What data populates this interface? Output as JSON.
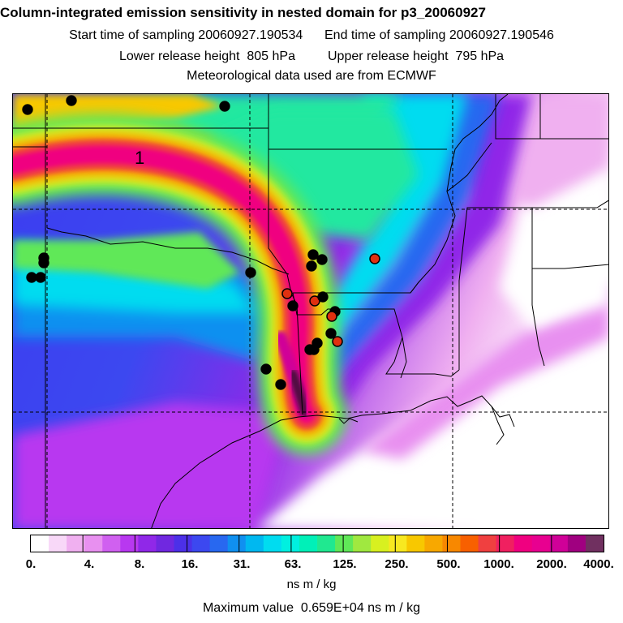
{
  "header": {
    "title": "Column-integrated emission sensitivity in nested domain for p3_20060927",
    "start_label": "Start time of sampling",
    "start_value": "20060927.190534",
    "end_label": "End time of sampling",
    "end_value": "20060927.190546",
    "lower_label": "Lower release height",
    "lower_value": "805 hPa",
    "upper_label": "Upper release height",
    "upper_value": "795 hPa",
    "met_note": "Meteorological data used are from ECMWF"
  },
  "map": {
    "contour_label": "1",
    "colors": {
      "background_low": "#ffffff",
      "violet": "#c040f0",
      "blue": "#3c3cf0",
      "cyan": "#00f0f0",
      "green": "#20e8a0",
      "yellow": "#f8d020",
      "orange": "#f8a000",
      "red": "#f02050",
      "magenta": "#f00090",
      "max": "#501040",
      "marker_black": "#000000",
      "marker_red": "#e03010"
    }
  },
  "colorbar": {
    "tick_labels": [
      "0.",
      "4.",
      "8.",
      "16.",
      "31.",
      "63.",
      "125.",
      "250.",
      "500.",
      "1000.",
      "2000.",
      "4000."
    ],
    "swatches": [
      "#ffffff",
      "#f8d8f8",
      "#f0b0f0",
      "#e890f0",
      "#d060f0",
      "#b838f0",
      "#9028e8",
      "#7028e0",
      "#4c30e8",
      "#3c48f0",
      "#2868f0",
      "#1090f0",
      "#00b8f0",
      "#00dcf0",
      "#00f0e0",
      "#00f0b8",
      "#20e890",
      "#60e858",
      "#a0e840",
      "#d8f020",
      "#f8e820",
      "#f8c800",
      "#f8a800",
      "#f88800",
      "#f86000",
      "#f04040",
      "#f02060",
      "#f00080",
      "#e80090",
      "#d00098",
      "#a00080",
      "#703060"
    ],
    "units": "ns m / kg"
  },
  "footer": {
    "max_label": "Maximum value",
    "max_value": "0.659E+04 ns m / kg"
  }
}
